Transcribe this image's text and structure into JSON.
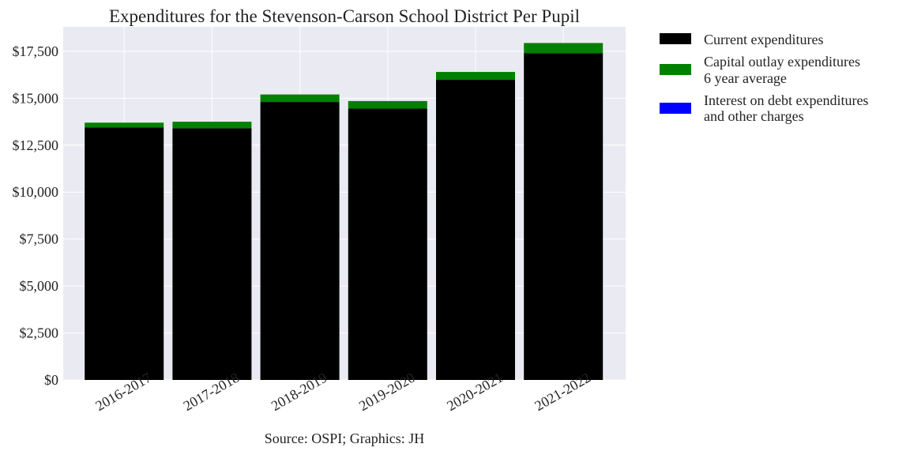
{
  "chart_data": {
    "type": "bar",
    "stacked": true,
    "title": "Expenditures for the Stevenson-Carson School District Per Pupil",
    "caption": "Source: OSPI; Graphics: JH",
    "categories": [
      "2016-2017",
      "2017-2018",
      "2018-2019",
      "2019-2020",
      "2020-2021",
      "2021-2022"
    ],
    "series": [
      {
        "name": "Current expenditures",
        "color": "#000000",
        "values": [
          13450,
          13400,
          14800,
          14450,
          15980,
          17390
        ]
      },
      {
        "name": "Capital outlay expenditures\n6 year average",
        "color": "#008000",
        "values": [
          250,
          350,
          400,
          400,
          420,
          550
        ]
      },
      {
        "name": "Interest on debt expenditures\nand other charges",
        "color": "#0000ff",
        "values": [
          0,
          0,
          0,
          0,
          0,
          0
        ]
      }
    ],
    "ylim": [
      0,
      18800
    ],
    "yticks": [
      0,
      2500,
      5000,
      7500,
      10000,
      12500,
      15000,
      17500
    ],
    "ytick_labels": [
      "$0",
      "$2,500",
      "$5,000",
      "$7,500",
      "$10,000",
      "$12,500",
      "$15,000",
      "$17,500"
    ],
    "grid": true,
    "background": "#eaeaf2",
    "legend_position": "outside-right"
  }
}
